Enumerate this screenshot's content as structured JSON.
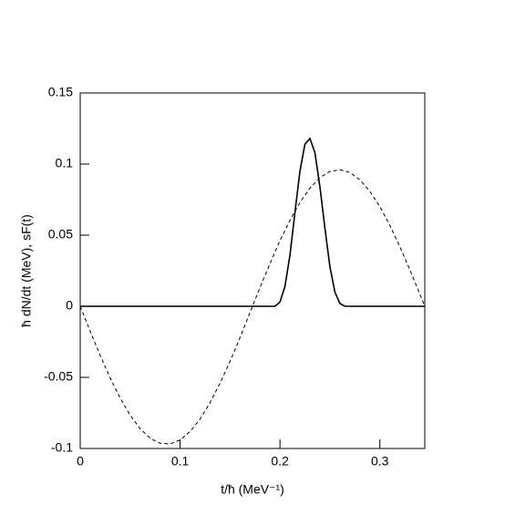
{
  "chart_data": {
    "type": "line",
    "xlabel": "t/ħ (MeV⁻¹)",
    "ylabel": "ħ dN/dt (MeV), sF(t)",
    "xlim": [
      0,
      0.345
    ],
    "xticks": [
      0,
      0.1,
      0.2,
      0.3
    ],
    "ylim": [
      -0.1,
      0.15
    ],
    "yticks": [
      -0.1,
      -0.05,
      0,
      0.05,
      0.1,
      0.15
    ],
    "series": [
      {
        "color": "#000000",
        "style": "dashed",
        "x": [
          0,
          0.01,
          0.02,
          0.03,
          0.04,
          0.05,
          0.06,
          0.07,
          0.08,
          0.09,
          0.1,
          0.11,
          0.12,
          0.13,
          0.14,
          0.15,
          0.16,
          0.17,
          0.18,
          0.19,
          0.2,
          0.21,
          0.22,
          0.23,
          0.24,
          0.25,
          0.26,
          0.27,
          0.28,
          0.29,
          0.3,
          0.31,
          0.32,
          0.33,
          0.34,
          0.345
        ],
        "values": [
          0,
          -0.0176,
          -0.0345,
          -0.0504,
          -0.0646,
          -0.0766,
          -0.0861,
          -0.0928,
          -0.0963,
          -0.0968,
          -0.094,
          -0.0881,
          -0.0793,
          -0.0678,
          -0.0541,
          -0.0387,
          -0.0221,
          -0.0044,
          0.0132,
          0.03,
          0.0461,
          0.0605,
          0.073,
          0.0831,
          0.0905,
          0.0948,
          0.096,
          0.0941,
          0.0889,
          0.0809,
          0.0701,
          0.057,
          0.042,
          0.0258,
          0.0087,
          0
        ]
      },
      {
        "color": "#000000",
        "style": "solid",
        "x": [
          0,
          0.19,
          0.195,
          0.2,
          0.205,
          0.21,
          0.215,
          0.22,
          0.225,
          0.23,
          0.235,
          0.24,
          0.245,
          0.25,
          0.255,
          0.26,
          0.265,
          0.345
        ],
        "values": [
          0,
          0,
          0,
          0.003,
          0.014,
          0.036,
          0.066,
          0.095,
          0.114,
          0.118,
          0.108,
          0.084,
          0.055,
          0.028,
          0.01,
          0.002,
          0,
          0
        ]
      }
    ]
  }
}
